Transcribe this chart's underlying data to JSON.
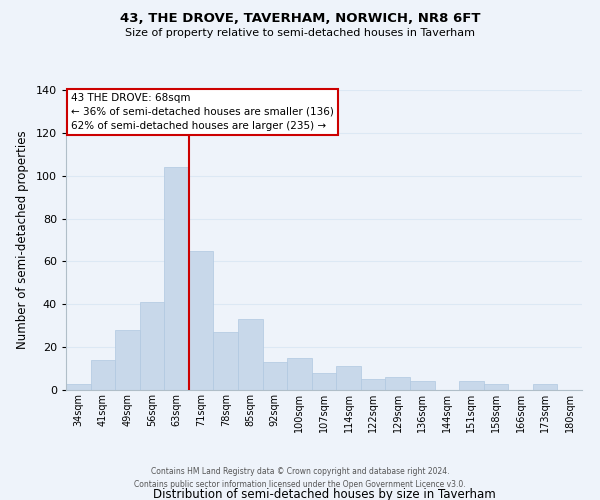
{
  "title": "43, THE DROVE, TAVERHAM, NORWICH, NR8 6FT",
  "subtitle": "Size of property relative to semi-detached houses in Taverham",
  "xlabel": "Distribution of semi-detached houses by size in Taverham",
  "ylabel": "Number of semi-detached properties",
  "bar_color": "#c8d8ea",
  "bar_edge_color": "#b0c8e0",
  "grid_color": "#dce8f4",
  "background_color": "#eef3fa",
  "plot_background": "#eef3fa",
  "categories": [
    "34sqm",
    "41sqm",
    "49sqm",
    "56sqm",
    "63sqm",
    "71sqm",
    "78sqm",
    "85sqm",
    "92sqm",
    "100sqm",
    "107sqm",
    "114sqm",
    "122sqm",
    "129sqm",
    "136sqm",
    "144sqm",
    "151sqm",
    "158sqm",
    "166sqm",
    "173sqm",
    "180sqm"
  ],
  "values": [
    3,
    14,
    28,
    41,
    104,
    65,
    27,
    33,
    13,
    15,
    8,
    11,
    5,
    6,
    4,
    0,
    4,
    3,
    0,
    3,
    0
  ],
  "property_line_idx": 5,
  "property_line_color": "#cc0000",
  "annotation_title": "43 THE DROVE: 68sqm",
  "annotation_line1": "← 36% of semi-detached houses are smaller (136)",
  "annotation_line2": "62% of semi-detached houses are larger (235) →",
  "annotation_box_color": "#ffffff",
  "annotation_box_edge_color": "#cc0000",
  "ylim": [
    0,
    140
  ],
  "footnote1": "Contains HM Land Registry data © Crown copyright and database right 2024.",
  "footnote2": "Contains public sector information licensed under the Open Government Licence v3.0."
}
